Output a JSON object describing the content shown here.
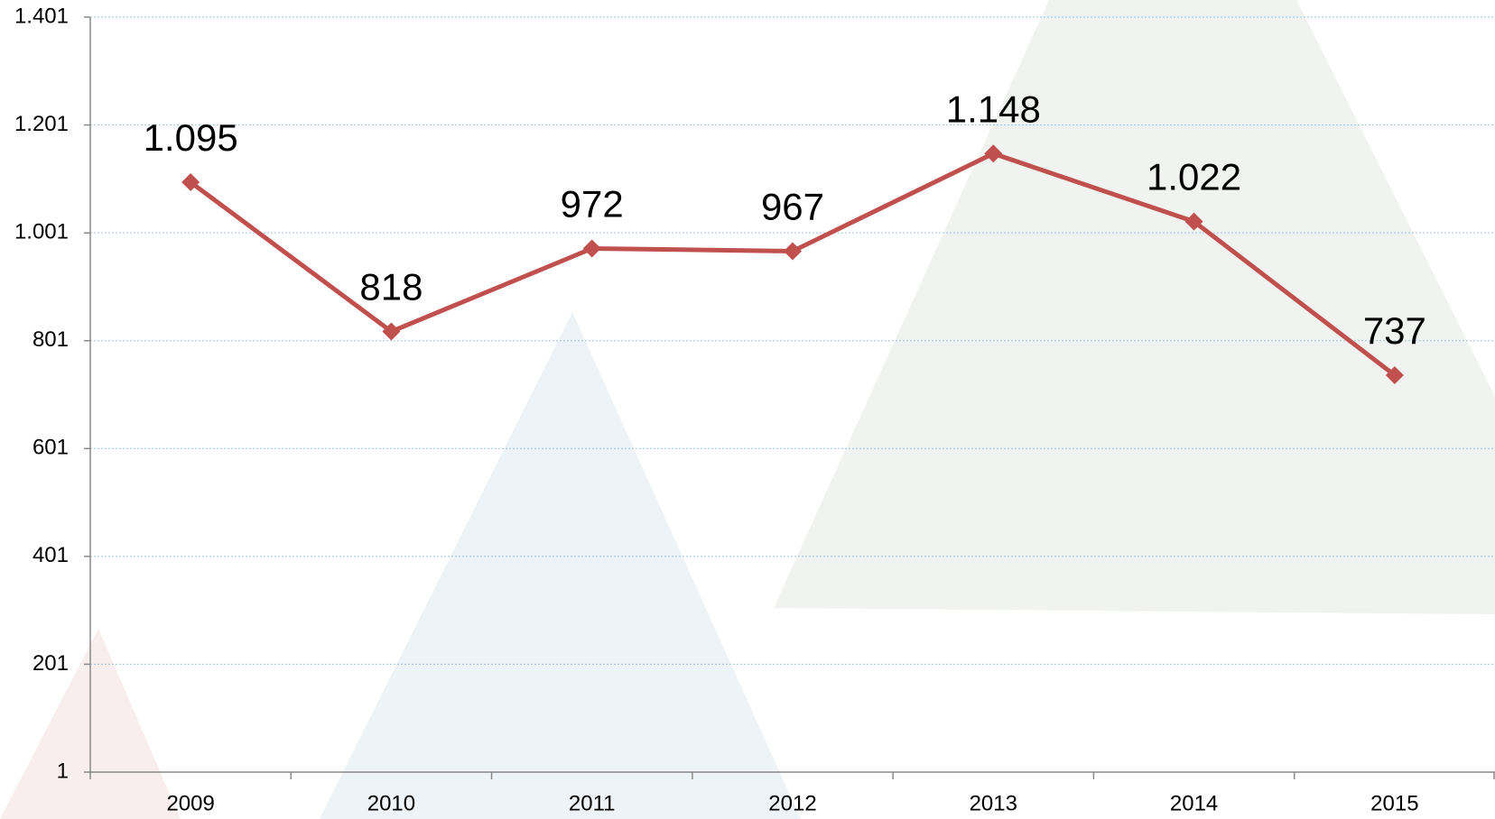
{
  "chart_data": {
    "type": "line",
    "categories": [
      "2009",
      "2010",
      "2011",
      "2012",
      "2013",
      "2014",
      "2015"
    ],
    "values": [
      1095,
      818,
      972,
      967,
      1148,
      1022,
      737
    ],
    "value_labels": [
      "1.095",
      "818",
      "972",
      "967",
      "1.148",
      "1.022",
      "737"
    ],
    "color": "#c0504d",
    "ylim": [
      1,
      1401
    ],
    "yticks": [
      1,
      201,
      401,
      601,
      801,
      {
        "value": 1001,
        "label": "1.001"
      },
      {
        "value": 1201,
        "label": "1.201"
      },
      {
        "value": 1401,
        "label": "1.401"
      }
    ],
    "grid": true
  }
}
